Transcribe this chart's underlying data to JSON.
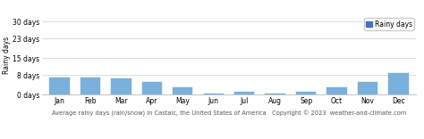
{
  "categories": [
    "Jan",
    "Feb",
    "Mar",
    "Apr",
    "May",
    "Jun",
    "Jul",
    "Aug",
    "Sep",
    "Oct",
    "Nov",
    "Dec"
  ],
  "values": [
    7,
    7,
    6.5,
    5,
    3,
    0.5,
    1,
    0.5,
    1,
    3,
    5,
    9
  ],
  "bar_color": "#7ab0dc",
  "bar_edge_color": "#7ab0dc",
  "ylabel": "Rainy days",
  "yticks": [
    0,
    8,
    15,
    23,
    30
  ],
  "ytick_labels": [
    "0 days",
    "8 days",
    "15 days",
    "23 days",
    "30 days"
  ],
  "ylim": [
    0,
    32
  ],
  "legend_label": "Rainy days",
  "legend_color": "#4472c4",
  "xlabel": "Average rainy days (rain/snow) in Castaic, the United States of America   Copyright © 2023  weather-and-climate.com",
  "background_color": "#ffffff",
  "grid_color": "#d0d0d0"
}
